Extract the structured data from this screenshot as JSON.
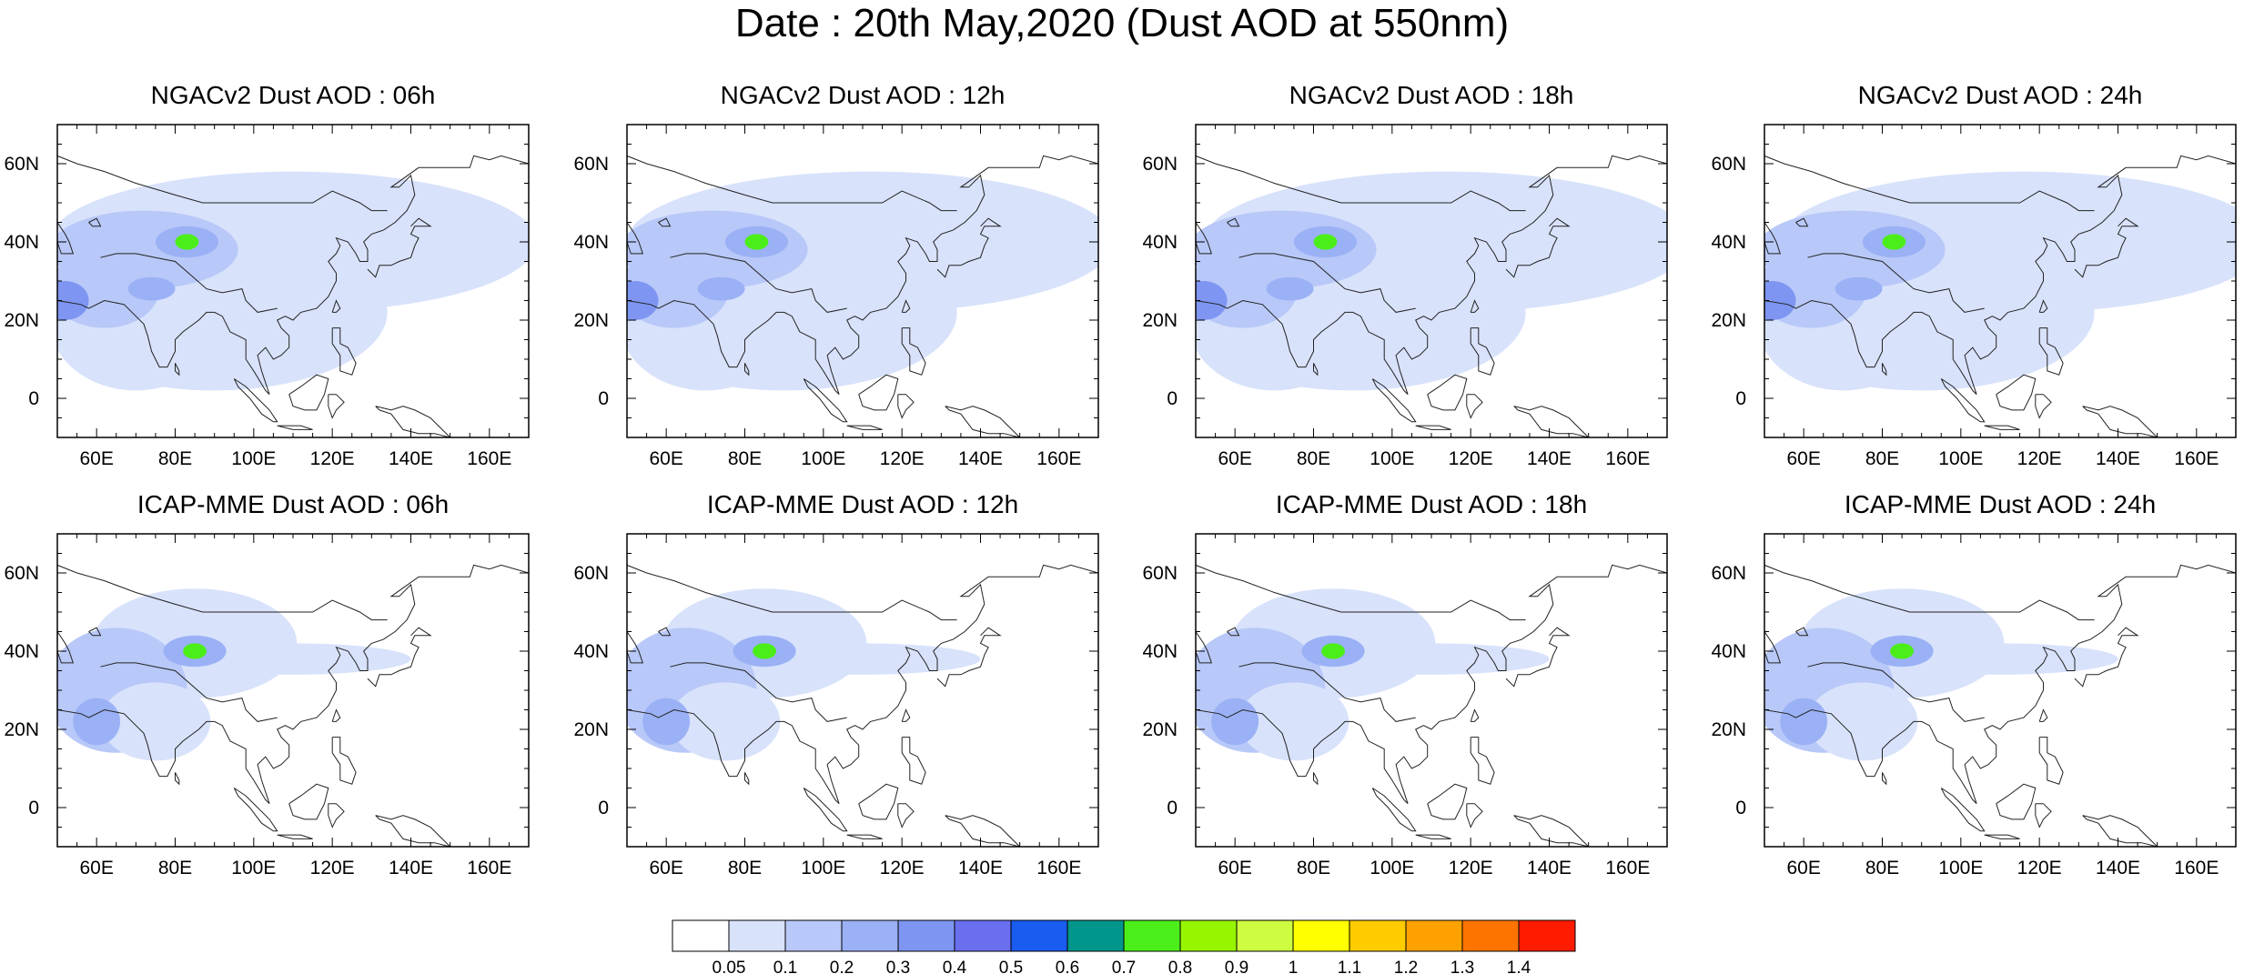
{
  "title": "Date : 20th May,2020 (Dust AOD at 550nm)",
  "panels": [
    {
      "title": "NGACv2 Dust AOD : 06h",
      "model": "NGACv2",
      "lead": "06h"
    },
    {
      "title": "NGACv2 Dust AOD : 12h",
      "model": "NGACv2",
      "lead": "12h"
    },
    {
      "title": "NGACv2 Dust AOD : 18h",
      "model": "NGACv2",
      "lead": "18h"
    },
    {
      "title": "NGACv2 Dust AOD : 24h",
      "model": "NGACv2",
      "lead": "24h"
    },
    {
      "title": "ICAP-MME Dust AOD : 06h",
      "model": "ICAP-MME",
      "lead": "06h"
    },
    {
      "title": "ICAP-MME Dust AOD : 12h",
      "model": "ICAP-MME",
      "lead": "12h"
    },
    {
      "title": "ICAP-MME Dust AOD : 18h",
      "model": "ICAP-MME",
      "lead": "18h"
    },
    {
      "title": "ICAP-MME Dust AOD : 24h",
      "model": "ICAP-MME",
      "lead": "24h"
    }
  ],
  "axes": {
    "lon_range": [
      50,
      170
    ],
    "lat_range": [
      -10,
      70
    ],
    "lon_ticks": [
      60,
      80,
      100,
      120,
      140,
      160
    ],
    "lon_labels": [
      "60E",
      "80E",
      "100E",
      "120E",
      "140E",
      "160E"
    ],
    "lat_ticks": [
      0,
      20,
      40,
      60
    ],
    "lat_labels": [
      "0",
      "20N",
      "40N",
      "60N"
    ]
  },
  "colorbar": {
    "labels": [
      "0.05",
      "0.1",
      "0.2",
      "0.3",
      "0.4",
      "0.5",
      "0.6",
      "0.7",
      "0.8",
      "0.9",
      "1",
      "1.1",
      "1.2",
      "1.3",
      "1.4"
    ],
    "colors": [
      "#ffffff",
      "#d8e2fb",
      "#b8c8f8",
      "#9bb1f6",
      "#7e96f2",
      "#6a6ff0",
      "#1a5cf0",
      "#00968c",
      "#4cee1a",
      "#98f500",
      "#cefc40",
      "#ffff00",
      "#ffcc00",
      "#ffa200",
      "#ff7400",
      "#ff1b00"
    ]
  }
}
